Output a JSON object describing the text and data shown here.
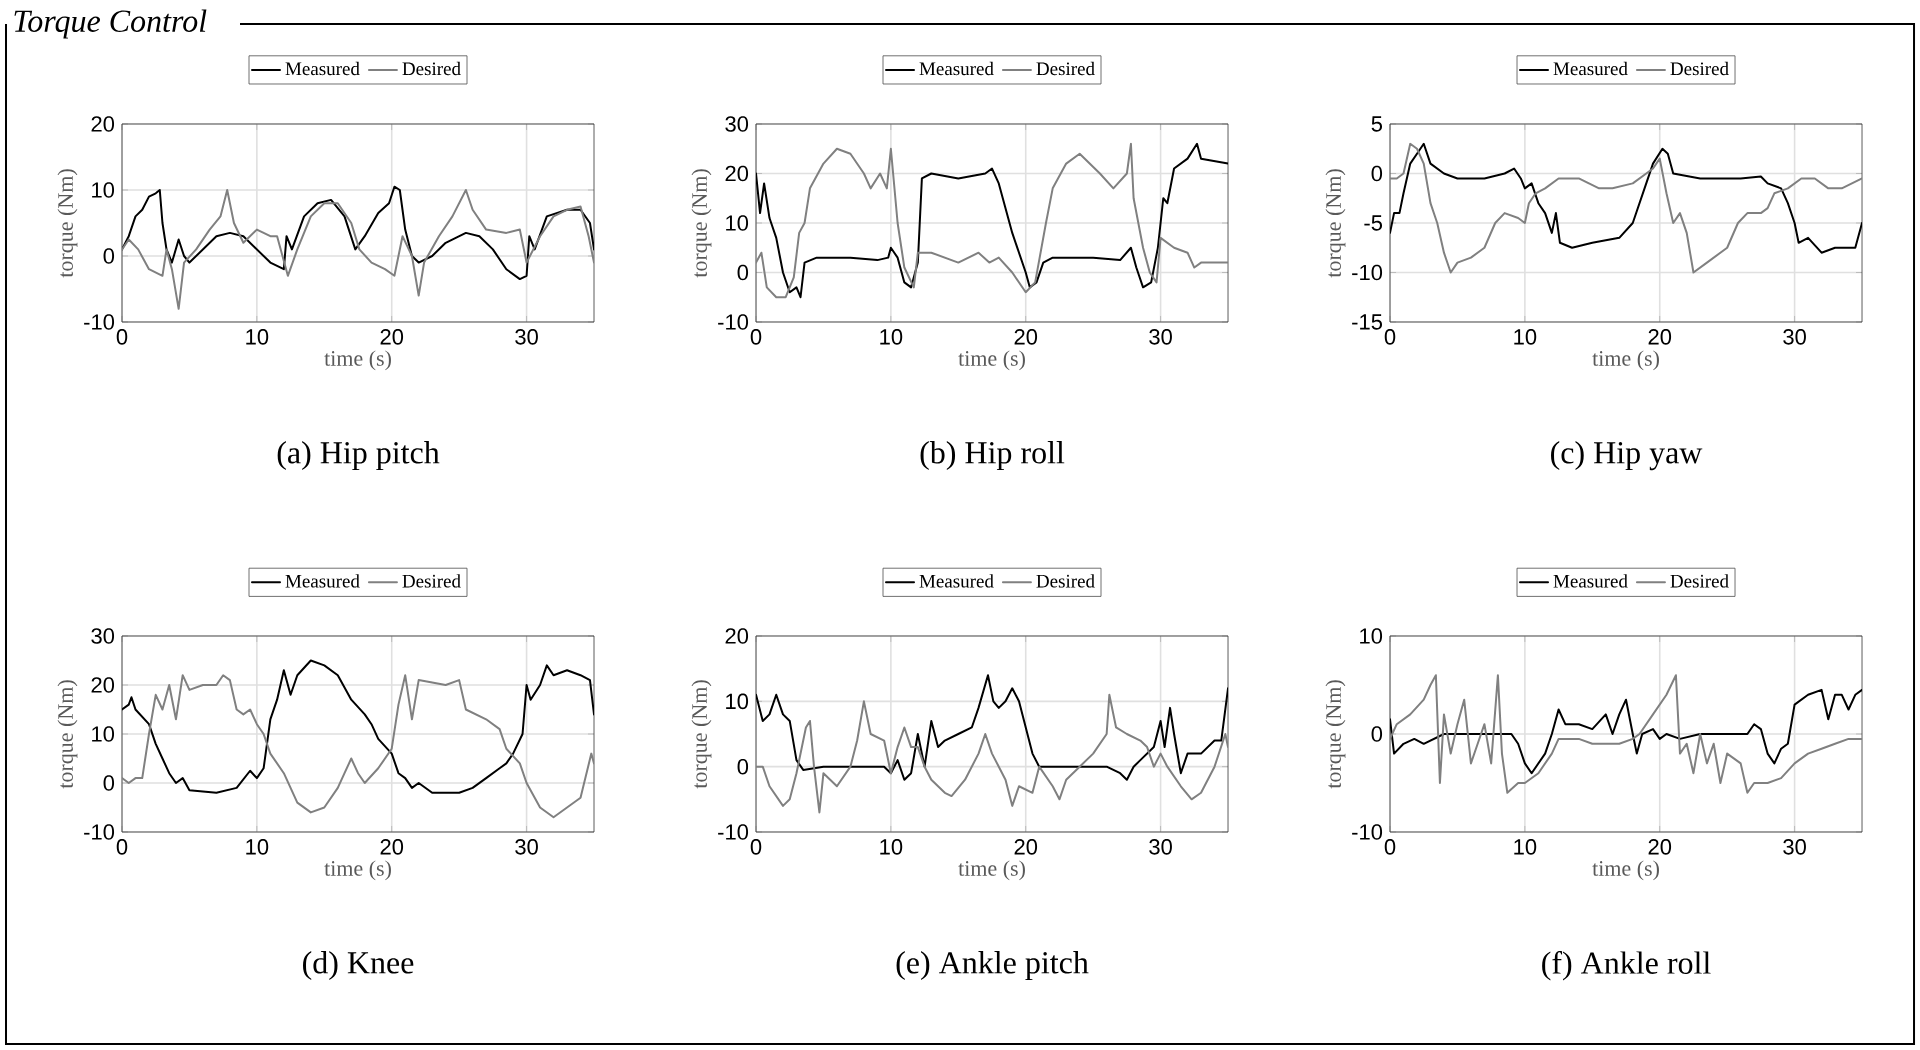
{
  "chart_data": [
    {
      "type": "line",
      "title": "(a) Hip pitch",
      "xlabel": "time (s)",
      "ylabel": "torque (Nm)",
      "annotations": [
        "Torque Control"
      ],
      "xlim": [
        0,
        35
      ],
      "ylim": [
        -10,
        20
      ],
      "xticks": [
        0,
        10,
        20,
        30
      ],
      "yticks": [
        -10,
        0,
        10,
        20
      ],
      "grid": true,
      "legend": "top",
      "series": [
        {
          "name": "Measured",
          "color": "#000000",
          "x": [
            0,
            0.5,
            1,
            1.5,
            2,
            2.5,
            2.8,
            3,
            3.3,
            3.7,
            4.2,
            4.6,
            5,
            6,
            7,
            8,
            9,
            10,
            11,
            12,
            12.2,
            12.6,
            13.5,
            14.5,
            15.5,
            16.5,
            17.3,
            18,
            19,
            19.8,
            20.2,
            20.6,
            21,
            21.5,
            22,
            23,
            24,
            25.5,
            26.5,
            27.5,
            28.5,
            29.5,
            30,
            30.2,
            30.6,
            31.5,
            33,
            34,
            34.7,
            35
          ],
          "values": [
            1,
            3,
            6,
            7,
            9,
            9.5,
            10,
            5,
            1,
            -1,
            2.5,
            0,
            -1,
            1,
            3,
            3.5,
            3,
            1,
            -1,
            -2,
            3,
            1,
            6,
            8,
            8.5,
            6,
            1,
            3,
            6.5,
            8,
            10.5,
            10,
            4,
            0,
            -1,
            0,
            2,
            3.5,
            3,
            1,
            -2,
            -3.5,
            -3,
            3,
            1,
            6,
            7,
            7,
            5,
            1
          ]
        },
        {
          "name": "Desired",
          "color": "#808080",
          "x": [
            0,
            0.5,
            1.2,
            2,
            3,
            3.3,
            3.7,
            4.2,
            4.6,
            5.5,
            6.5,
            7.3,
            7.8,
            8.3,
            9,
            10,
            11,
            11.5,
            12.3,
            13,
            14,
            15,
            16,
            17,
            17.6,
            18.5,
            19.5,
            20.2,
            20.8,
            21.5,
            22,
            22.4,
            23.5,
            24.5,
            25.5,
            26,
            27,
            28.5,
            29.5,
            30,
            31,
            32,
            33,
            34,
            34.6,
            35
          ],
          "values": [
            1,
            2.5,
            1,
            -2,
            -3,
            1,
            -2,
            -8,
            -1,
            1,
            4,
            6,
            10,
            5,
            2,
            4,
            3,
            3,
            -3,
            1,
            6,
            8,
            8,
            5,
            1,
            -1,
            -2,
            -3,
            3,
            0,
            -6,
            -1,
            3,
            6,
            10,
            7,
            4,
            3.5,
            4,
            -1,
            3,
            6,
            7,
            7.5,
            3,
            -1
          ]
        }
      ]
    },
    {
      "type": "line",
      "title": "(b) Hip roll",
      "xlabel": "time (s)",
      "ylabel": "torque (Nm)",
      "xlim": [
        0,
        35
      ],
      "ylim": [
        -10,
        30
      ],
      "xticks": [
        0,
        10,
        20,
        30
      ],
      "yticks": [
        -10,
        0,
        10,
        20,
        30
      ],
      "grid": true,
      "legend": "top",
      "series": [
        {
          "name": "Measured",
          "color": "#000000",
          "x": [
            0,
            0.3,
            0.6,
            1,
            1.5,
            2,
            2.5,
            3,
            3.3,
            3.6,
            4.5,
            7,
            9,
            9.8,
            10,
            10.5,
            11,
            11.5,
            12,
            12.3,
            13,
            15,
            17,
            17.5,
            18,
            18.5,
            19,
            20,
            20.3,
            20.8,
            21.3,
            22,
            25,
            27,
            27.8,
            28.2,
            28.7,
            29.3,
            29.8,
            30.2,
            30.5,
            31,
            32,
            32.7,
            33,
            35
          ],
          "values": [
            20,
            12,
            18,
            11,
            7,
            0,
            -4,
            -3,
            -5,
            2,
            3,
            3,
            2.5,
            3,
            5,
            3,
            -2,
            -3,
            2,
            19,
            20,
            19,
            20,
            21,
            18,
            13,
            8,
            0,
            -3,
            -2,
            2,
            3,
            3,
            2.5,
            5,
            1,
            -3,
            -2,
            5,
            15,
            14,
            21,
            23,
            26,
            23,
            22
          ]
        },
        {
          "name": "Desired",
          "color": "#808080",
          "x": [
            0,
            0.4,
            0.8,
            1.5,
            2.2,
            2.8,
            3.2,
            3.6,
            4,
            5,
            6,
            7,
            8,
            8.5,
            9.2,
            9.7,
            10,
            10.5,
            11,
            11.7,
            12,
            13,
            15,
            16.5,
            17.3,
            18,
            19,
            20,
            20.7,
            21.5,
            22,
            23,
            24,
            25.5,
            26.5,
            27.5,
            27.8,
            28,
            28.7,
            29.2,
            29.7,
            30,
            31,
            32,
            32.5,
            33,
            35
          ],
          "values": [
            2,
            4,
            -3,
            -5,
            -5,
            -1,
            8,
            10,
            17,
            22,
            25,
            24,
            20,
            17,
            20,
            17,
            25,
            10,
            1,
            -3,
            4,
            4,
            2,
            4,
            2,
            3,
            0,
            -4,
            -2,
            10,
            17,
            22,
            24,
            20,
            17,
            20,
            26,
            15,
            5,
            0,
            -2,
            7,
            5,
            4,
            1,
            2,
            2
          ]
        }
      ]
    },
    {
      "type": "line",
      "title": "(c) Hip yaw",
      "xlabel": "time (s)",
      "ylabel": "torque (Nm)",
      "xlim": [
        0,
        35
      ],
      "ylim": [
        -15,
        5
      ],
      "xticks": [
        0,
        10,
        20,
        30
      ],
      "yticks": [
        -15,
        -10,
        -5,
        0,
        5
      ],
      "grid": true,
      "legend": "top",
      "series": [
        {
          "name": "Measured",
          "color": "#000000",
          "x": [
            0,
            0.3,
            0.7,
            1,
            1.5,
            2,
            2.5,
            3,
            4,
            5,
            7,
            8.5,
            9.2,
            9.7,
            10,
            10.5,
            11,
            11.5,
            12,
            12.3,
            12.6,
            13.5,
            15,
            17,
            18,
            18.5,
            19,
            19.5,
            20.2,
            20.6,
            21,
            23,
            26,
            27.5,
            28,
            29,
            29.5,
            30,
            30.3,
            31,
            32,
            33,
            34.5,
            35
          ],
          "values": [
            -6,
            -4,
            -4,
            -2,
            1,
            2,
            3,
            1,
            0,
            -0.5,
            -0.5,
            0,
            0.5,
            -0.5,
            -1.5,
            -1,
            -3,
            -4,
            -6,
            -4,
            -7,
            -7.5,
            -7,
            -6.5,
            -5,
            -3,
            -1,
            1,
            2.5,
            2,
            0,
            -0.5,
            -0.5,
            -0.3,
            -1,
            -1.5,
            -3,
            -5,
            -7,
            -6.5,
            -8,
            -7.5,
            -7.5,
            -5
          ]
        },
        {
          "name": "Desired",
          "color": "#808080",
          "x": [
            0,
            0.5,
            1,
            1.5,
            2,
            2.5,
            3,
            3.5,
            4,
            4.5,
            5,
            6,
            7,
            7.8,
            8.5,
            9.5,
            10,
            10.3,
            10.8,
            11.5,
            12.5,
            14,
            15.5,
            16.5,
            18,
            19,
            19.5,
            20,
            20.5,
            21,
            21.5,
            22,
            22.5,
            23.5,
            25,
            25.8,
            26.5,
            27.5,
            28,
            28.5,
            29.5,
            30.5,
            31.5,
            32.5,
            33.5,
            35
          ],
          "values": [
            -0.5,
            -0.5,
            0,
            3,
            2.5,
            1,
            -3,
            -5,
            -8,
            -10,
            -9,
            -8.5,
            -7.5,
            -5,
            -4,
            -4.5,
            -5,
            -3,
            -2,
            -1.5,
            -0.5,
            -0.5,
            -1.5,
            -1.5,
            -1,
            0,
            0.5,
            1.5,
            -2,
            -5,
            -4,
            -6,
            -10,
            -9,
            -7.5,
            -5,
            -4,
            -4,
            -3.5,
            -2,
            -1.5,
            -0.5,
            -0.5,
            -1.5,
            -1.5,
            -0.5
          ]
        }
      ]
    },
    {
      "type": "line",
      "title": "(d) Knee",
      "xlabel": "time (s)",
      "ylabel": "torque (Nm)",
      "xlim": [
        0,
        35
      ],
      "ylim": [
        -10,
        30
      ],
      "xticks": [
        0,
        10,
        20,
        30
      ],
      "yticks": [
        -10,
        0,
        10,
        20,
        30
      ],
      "grid": true,
      "legend": "top",
      "series": [
        {
          "name": "Measured",
          "color": "#000000",
          "x": [
            0,
            0.5,
            0.7,
            1,
            2,
            2.5,
            3,
            3.5,
            4,
            4.5,
            5,
            7,
            8.5,
            9.5,
            10,
            10.5,
            11,
            11.5,
            12,
            12.5,
            13,
            14,
            15,
            16,
            17,
            18,
            18.5,
            19,
            20,
            20.5,
            21,
            21.5,
            22,
            23,
            25,
            26,
            27,
            28,
            28.5,
            29,
            29.7,
            30,
            30.3,
            31,
            31.5,
            32,
            33,
            34,
            34.7,
            35
          ],
          "values": [
            15,
            16,
            17.5,
            15,
            12,
            8,
            5,
            2,
            0,
            1,
            -1.5,
            -2,
            -1,
            2.5,
            1,
            3,
            13,
            17,
            23,
            18,
            22,
            25,
            24,
            22,
            17,
            14,
            12,
            9,
            6,
            2,
            1,
            -1,
            0,
            -2,
            -2,
            -1,
            1,
            3,
            4,
            6,
            10,
            20,
            17,
            20,
            24,
            22,
            23,
            22,
            21,
            14
          ]
        },
        {
          "name": "Desired",
          "color": "#808080",
          "x": [
            0,
            0.5,
            1,
            1.5,
            2,
            2.5,
            3,
            3.5,
            4,
            4.5,
            5,
            6,
            7,
            7.5,
            8,
            8.5,
            9,
            9.5,
            10,
            10.5,
            11,
            12,
            13,
            14,
            15,
            16,
            16.5,
            17,
            17.5,
            18,
            19,
            20,
            20.5,
            21,
            21.5,
            22,
            24,
            25,
            25.5,
            27,
            28,
            28.5,
            29.5,
            30,
            31,
            32,
            33,
            34,
            34.8,
            35
          ],
          "values": [
            1,
            0,
            1,
            1,
            10,
            18,
            15,
            20,
            13,
            22,
            19,
            20,
            20,
            22,
            21,
            15,
            14,
            15,
            12,
            10,
            6,
            2,
            -4,
            -6,
            -5,
            -1,
            2,
            5,
            2,
            0,
            3,
            7,
            16,
            22,
            13,
            21,
            20,
            21,
            15,
            13,
            11,
            7,
            4,
            0,
            -5,
            -7,
            -5,
            -3,
            6,
            4
          ]
        }
      ]
    },
    {
      "type": "line",
      "title": "(e) Ankle pitch",
      "xlabel": "time (s)",
      "ylabel": "torque (Nm)",
      "xlim": [
        0,
        35
      ],
      "ylim": [
        -10,
        20
      ],
      "xticks": [
        0,
        10,
        20,
        30
      ],
      "yticks": [
        -10,
        0,
        10,
        20
      ],
      "grid": true,
      "legend": "top",
      "series": [
        {
          "name": "Measured",
          "color": "#000000",
          "x": [
            0,
            0.5,
            1,
            1.5,
            2,
            2.5,
            3,
            3.5,
            5,
            8,
            9.5,
            10,
            10.5,
            11,
            11.5,
            12,
            12.5,
            13,
            13.5,
            14,
            15,
            16,
            16.5,
            17.2,
            17.6,
            18,
            18.5,
            19,
            19.5,
            20.5,
            21,
            23,
            26,
            27,
            27.5,
            28,
            28.5,
            29.5,
            30,
            30.3,
            30.7,
            31,
            31.5,
            32,
            33,
            34,
            34.5,
            35
          ],
          "values": [
            11,
            7,
            8,
            11,
            8,
            7,
            1,
            -0.5,
            0,
            0,
            0,
            -1,
            1,
            -2,
            -1,
            5,
            0,
            7,
            3,
            4,
            5,
            6,
            9,
            14,
            10,
            9,
            10,
            12,
            10,
            2,
            0,
            0,
            0,
            -1,
            -2,
            0,
            1,
            3,
            7,
            3,
            9,
            5,
            -1,
            2,
            2,
            4,
            4,
            12
          ]
        },
        {
          "name": "Desired",
          "color": "#808080",
          "x": [
            0,
            0.5,
            1,
            2,
            2.5,
            3,
            3.7,
            4,
            4.3,
            4.7,
            5,
            6,
            7,
            7.5,
            8,
            8.5,
            9.5,
            10,
            10.5,
            11,
            11.5,
            12,
            12.5,
            13,
            14,
            14.5,
            15.5,
            16.5,
            17,
            17.5,
            18.5,
            19,
            19.5,
            20.5,
            21,
            22,
            22.5,
            23,
            24,
            25,
            26,
            26.2,
            26.7,
            27.5,
            28.5,
            29,
            29.5,
            30,
            30.5,
            31.5,
            32.3,
            33,
            34,
            34.8,
            35
          ],
          "values": [
            0,
            0,
            -3,
            -6,
            -5,
            -1,
            6,
            7,
            0,
            -7,
            -1,
            -3,
            0,
            4,
            10,
            5,
            4,
            -1,
            3,
            6,
            3,
            3,
            0,
            -2,
            -4,
            -4.5,
            -2,
            2,
            5,
            2,
            -2,
            -6,
            -3,
            -4,
            0,
            -3,
            -5,
            -2,
            0,
            2,
            5,
            11,
            6,
            5,
            4,
            3,
            0,
            2,
            0,
            -3,
            -5,
            -4,
            0,
            5,
            3
          ]
        }
      ]
    },
    {
      "type": "line",
      "title": "(f) Ankle roll",
      "xlabel": "time (s)",
      "ylabel": "torque (Nm)",
      "xlim": [
        0,
        35
      ],
      "ylim": [
        -10,
        10
      ],
      "xticks": [
        0,
        10,
        20,
        30
      ],
      "yticks": [
        -10,
        0,
        10
      ],
      "grid": true,
      "legend": "top",
      "series": [
        {
          "name": "Measured",
          "color": "#000000",
          "x": [
            0,
            0.3,
            1,
            1.8,
            2.5,
            4,
            6,
            8,
            9,
            9.5,
            10,
            10.5,
            11,
            11.5,
            12,
            12.5,
            13,
            14,
            15,
            16,
            16.5,
            17,
            17.5,
            18,
            18.3,
            18.7,
            19.5,
            20,
            20.5,
            21.5,
            23,
            25,
            26.5,
            27,
            27.5,
            28,
            28.5,
            29,
            29.5,
            30,
            31,
            32,
            32.5,
            33,
            33.5,
            34,
            34.5,
            35
          ],
          "values": [
            1.5,
            -2,
            -1,
            -0.5,
            -1,
            0,
            0,
            0,
            0,
            -1,
            -3,
            -4,
            -3,
            -2,
            0,
            2.5,
            1,
            1,
            0.5,
            2,
            0,
            2,
            3.5,
            0,
            -2,
            0,
            0.5,
            -0.5,
            0,
            -0.5,
            0,
            0,
            0,
            1,
            0.5,
            -2,
            -3,
            -1.5,
            -1,
            3,
            4,
            4.5,
            1.5,
            4,
            4,
            2.5,
            4,
            4.5
          ]
        },
        {
          "name": "Desired",
          "color": "#808080",
          "x": [
            0,
            0.5,
            1.5,
            2.5,
            3,
            3.4,
            3.7,
            4,
            4.5,
            5,
            5.5,
            6,
            6.5,
            7,
            7.5,
            8,
            8.3,
            8.7,
            9.5,
            10,
            11,
            12,
            12.5,
            14,
            15,
            16,
            17,
            18,
            18.5,
            19.5,
            20.5,
            21.2,
            21.5,
            22,
            22.5,
            23,
            23.5,
            24,
            24.5,
            25,
            26,
            26.5,
            27,
            28,
            29,
            30,
            31,
            32,
            33,
            34,
            35
          ],
          "values": [
            -0.5,
            1,
            2,
            3.5,
            5,
            6,
            -5,
            2,
            -2,
            1,
            3.5,
            -3,
            -1,
            1,
            -3,
            6,
            -2,
            -6,
            -5,
            -5,
            -4,
            -2,
            -0.5,
            -0.5,
            -1,
            -1,
            -1,
            -0.5,
            0,
            2,
            4,
            6,
            -2,
            -1,
            -4,
            0,
            -3,
            -1,
            -5,
            -2,
            -3,
            -6,
            -5,
            -5,
            -4.5,
            -3,
            -2,
            -1.5,
            -1,
            -0.5,
            -0.5
          ]
        }
      ]
    }
  ]
}
